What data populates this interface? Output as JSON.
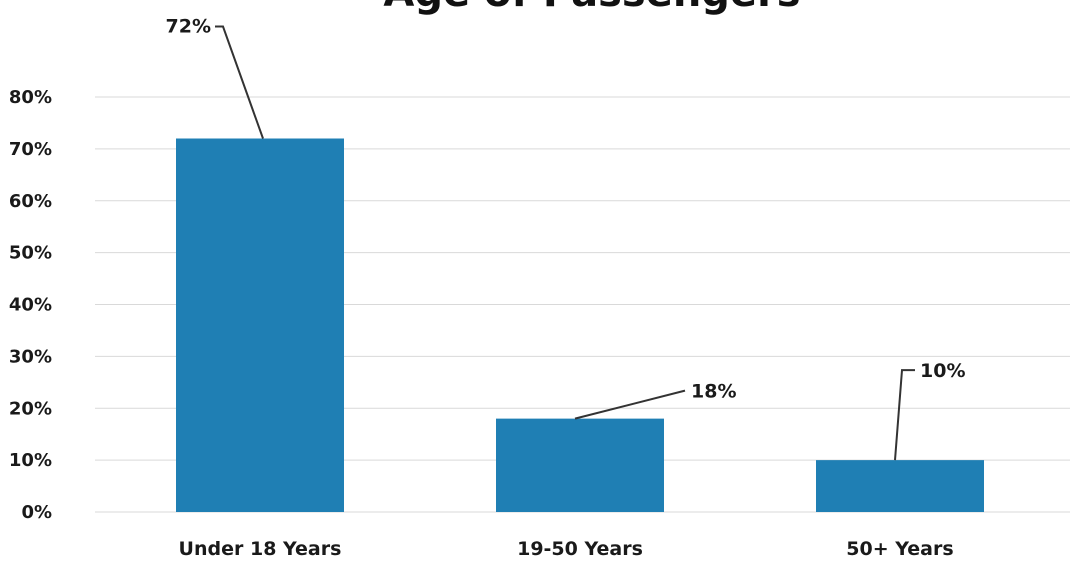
{
  "chart_data": {
    "type": "bar",
    "title": "Age of Passengers",
    "categories": [
      "Under 18 Years",
      "19-50 Years",
      "50+ Years"
    ],
    "values": [
      72,
      18,
      10
    ],
    "value_labels": [
      "72%",
      "18%",
      "10%"
    ],
    "xlabel": "",
    "ylabel": "",
    "ylim": [
      0,
      80
    ],
    "ytick_labels": [
      "0%",
      "10%",
      "20%",
      "30%",
      "40%",
      "50%",
      "60%",
      "70%",
      "80%"
    ],
    "grid": true,
    "legend": "none",
    "bar_color": "#1f7fb4"
  }
}
